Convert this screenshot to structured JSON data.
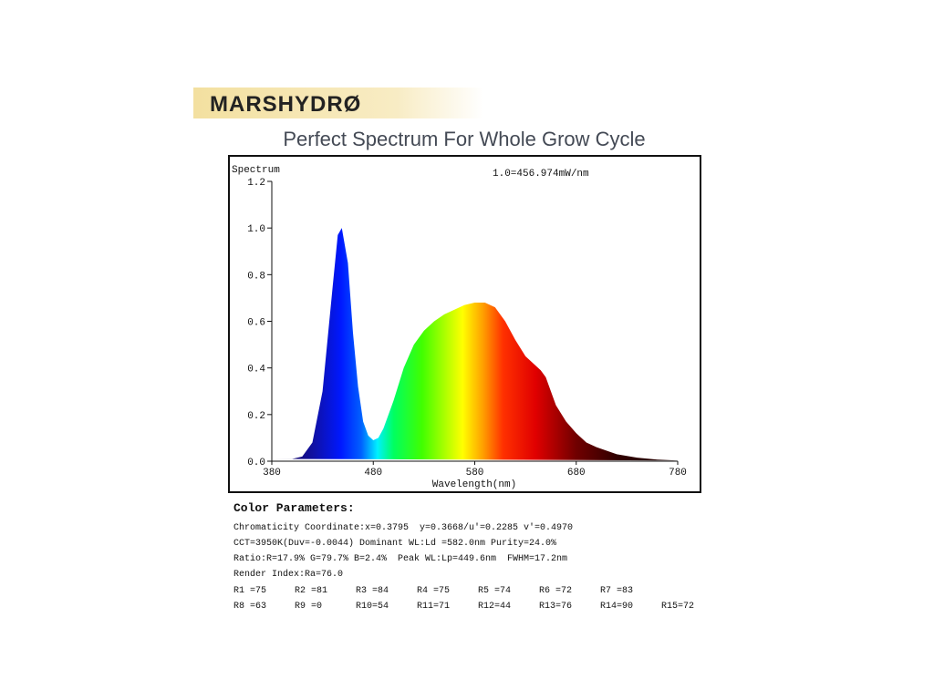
{
  "header": {
    "logo": "MARSHYDRØ",
    "title": "Perfect Spectrum For Whole Grow Cycle"
  },
  "chart_data": {
    "type": "area",
    "y_label": "Spectrum",
    "x_label": "Wavelength(nm)",
    "annotation": "1.0=456.974mW/nm",
    "x": [
      380,
      390,
      400,
      410,
      420,
      430,
      440,
      445,
      449,
      455,
      460,
      465,
      470,
      475,
      480,
      485,
      490,
      500,
      510,
      520,
      530,
      540,
      550,
      560,
      570,
      580,
      590,
      600,
      610,
      620,
      630,
      640,
      645,
      650,
      655,
      660,
      670,
      680,
      690,
      700,
      720,
      740,
      760,
      780
    ],
    "values": [
      0.01,
      0.01,
      0.01,
      0.02,
      0.08,
      0.3,
      0.75,
      0.97,
      1.0,
      0.85,
      0.55,
      0.32,
      0.17,
      0.11,
      0.09,
      0.1,
      0.14,
      0.26,
      0.4,
      0.5,
      0.56,
      0.6,
      0.63,
      0.65,
      0.67,
      0.68,
      0.68,
      0.66,
      0.6,
      0.52,
      0.45,
      0.41,
      0.39,
      0.36,
      0.3,
      0.24,
      0.17,
      0.12,
      0.08,
      0.06,
      0.03,
      0.015,
      0.007,
      0.003
    ],
    "xlim": [
      380,
      780
    ],
    "ylim": [
      0,
      1.2
    ],
    "xticks": [
      380,
      480,
      580,
      680,
      780
    ],
    "yticks": [
      {
        "value": 0,
        "label": "0.0"
      },
      0.2,
      0.4,
      0.6,
      0.8,
      {
        "value": 1,
        "label": "1.0"
      },
      1.2
    ]
  },
  "parameters": {
    "heading": "Color Parameters:",
    "lines": [
      "Chromaticity Coordinate:x=0.3795  y=0.3668/u'=0.2285 v'=0.4970",
      "CCT=3950K(Duv=-0.0044) Dominant WL:Ld =582.0nm Purity=24.0%",
      "Ratio:R=17.9% G=79.7% B=2.4%  Peak WL:Lp=449.6nm  FWHM=17.2nm",
      "Render Index:Ra=76.0"
    ],
    "rows": [
      [
        "R1 =75",
        "R2 =81",
        "R3 =84",
        "R4 =75",
        "R5 =74",
        "R6 =72",
        "R7 =83"
      ],
      [
        "R8 =63",
        "R9 =0",
        "R10=54",
        "R11=71",
        "R12=44",
        "R13=76",
        "R14=90",
        "R15=72"
      ]
    ]
  }
}
